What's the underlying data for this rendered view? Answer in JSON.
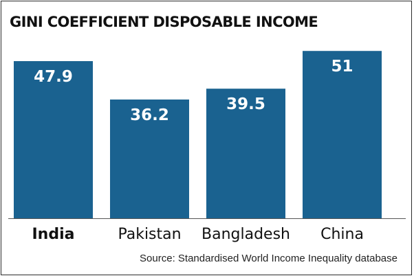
{
  "chart_data": {
    "type": "bar",
    "title": "GINI COEFFICIENT DISPOSABLE INCOME",
    "categories": [
      "India",
      "Pakistan",
      "Bangladesh",
      "China"
    ],
    "values": [
      47.9,
      36.2,
      39.5,
      51
    ],
    "value_labels": [
      "47.9",
      "36.2",
      "39.5",
      "51"
    ],
    "highlighted_category": "India",
    "bar_color": "#1a6290",
    "value_label_color": "#ffffff",
    "grid": false,
    "legend": "none",
    "source": "Source: Standardised World Income Inequality database"
  }
}
